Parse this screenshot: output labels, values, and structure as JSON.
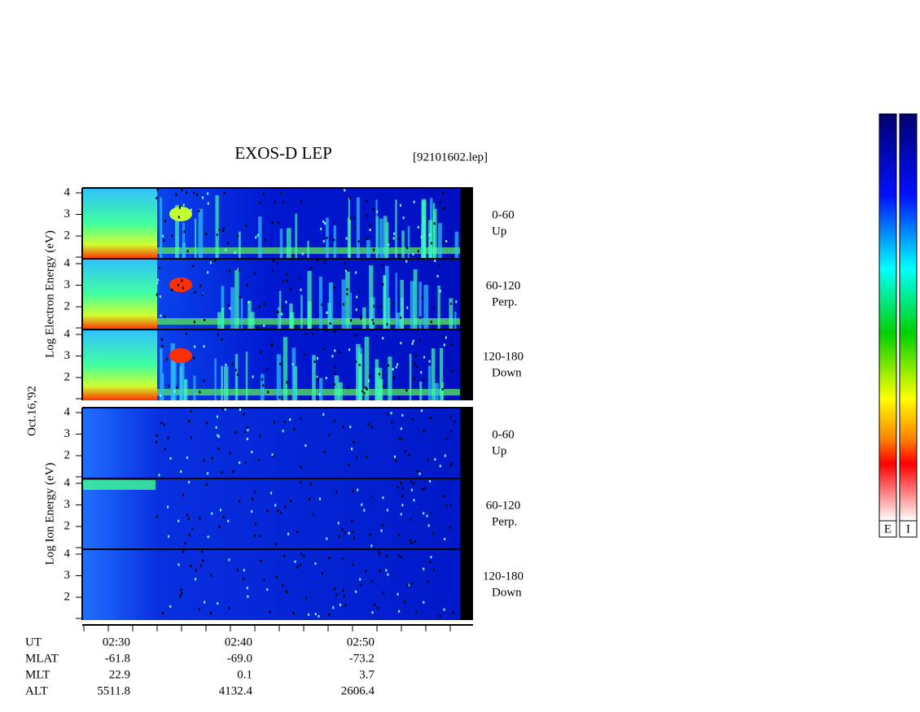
{
  "header": {
    "title": "EXOS-D LEP",
    "file": "[92101602.lep]",
    "date": "Oct.16,'92"
  },
  "groups": [
    {
      "label": "Log Electron Energy (eV)",
      "panels": [
        {
          "ticks": [
            "4",
            "3",
            "2"
          ],
          "angle": "0-60",
          "direction": "Up"
        },
        {
          "ticks": [
            "4",
            "3",
            "2"
          ],
          "angle": "60-120",
          "direction": "Perp."
        },
        {
          "ticks": [
            "4",
            "3",
            "2"
          ],
          "angle": "120-180",
          "direction": "Down"
        }
      ]
    },
    {
      "label": "Log Ion Energy (eV)",
      "panels": [
        {
          "ticks": [
            "4",
            "3",
            "2"
          ],
          "angle": "0-60",
          "direction": "Up"
        },
        {
          "ticks": [
            "4",
            "3",
            "2"
          ],
          "angle": "60-120",
          "direction": "Perp."
        },
        {
          "ticks": [
            "4",
            "3",
            "2"
          ],
          "angle": "120-180",
          "direction": "Down"
        }
      ]
    }
  ],
  "time_axis": {
    "rows": [
      {
        "name": "UT",
        "values": [
          "02:30",
          "02:40",
          "02:50"
        ]
      },
      {
        "name": "MLAT",
        "values": [
          "-61.8",
          "-69.0",
          "-73.2"
        ]
      },
      {
        "name": "MLT",
        "values": [
          "22.9",
          "0.1",
          "3.7"
        ]
      },
      {
        "name": "ALT",
        "values": [
          "5511.8",
          "4132.4",
          "2606.4"
        ]
      }
    ]
  },
  "colorbars": [
    "E",
    "I"
  ]
}
